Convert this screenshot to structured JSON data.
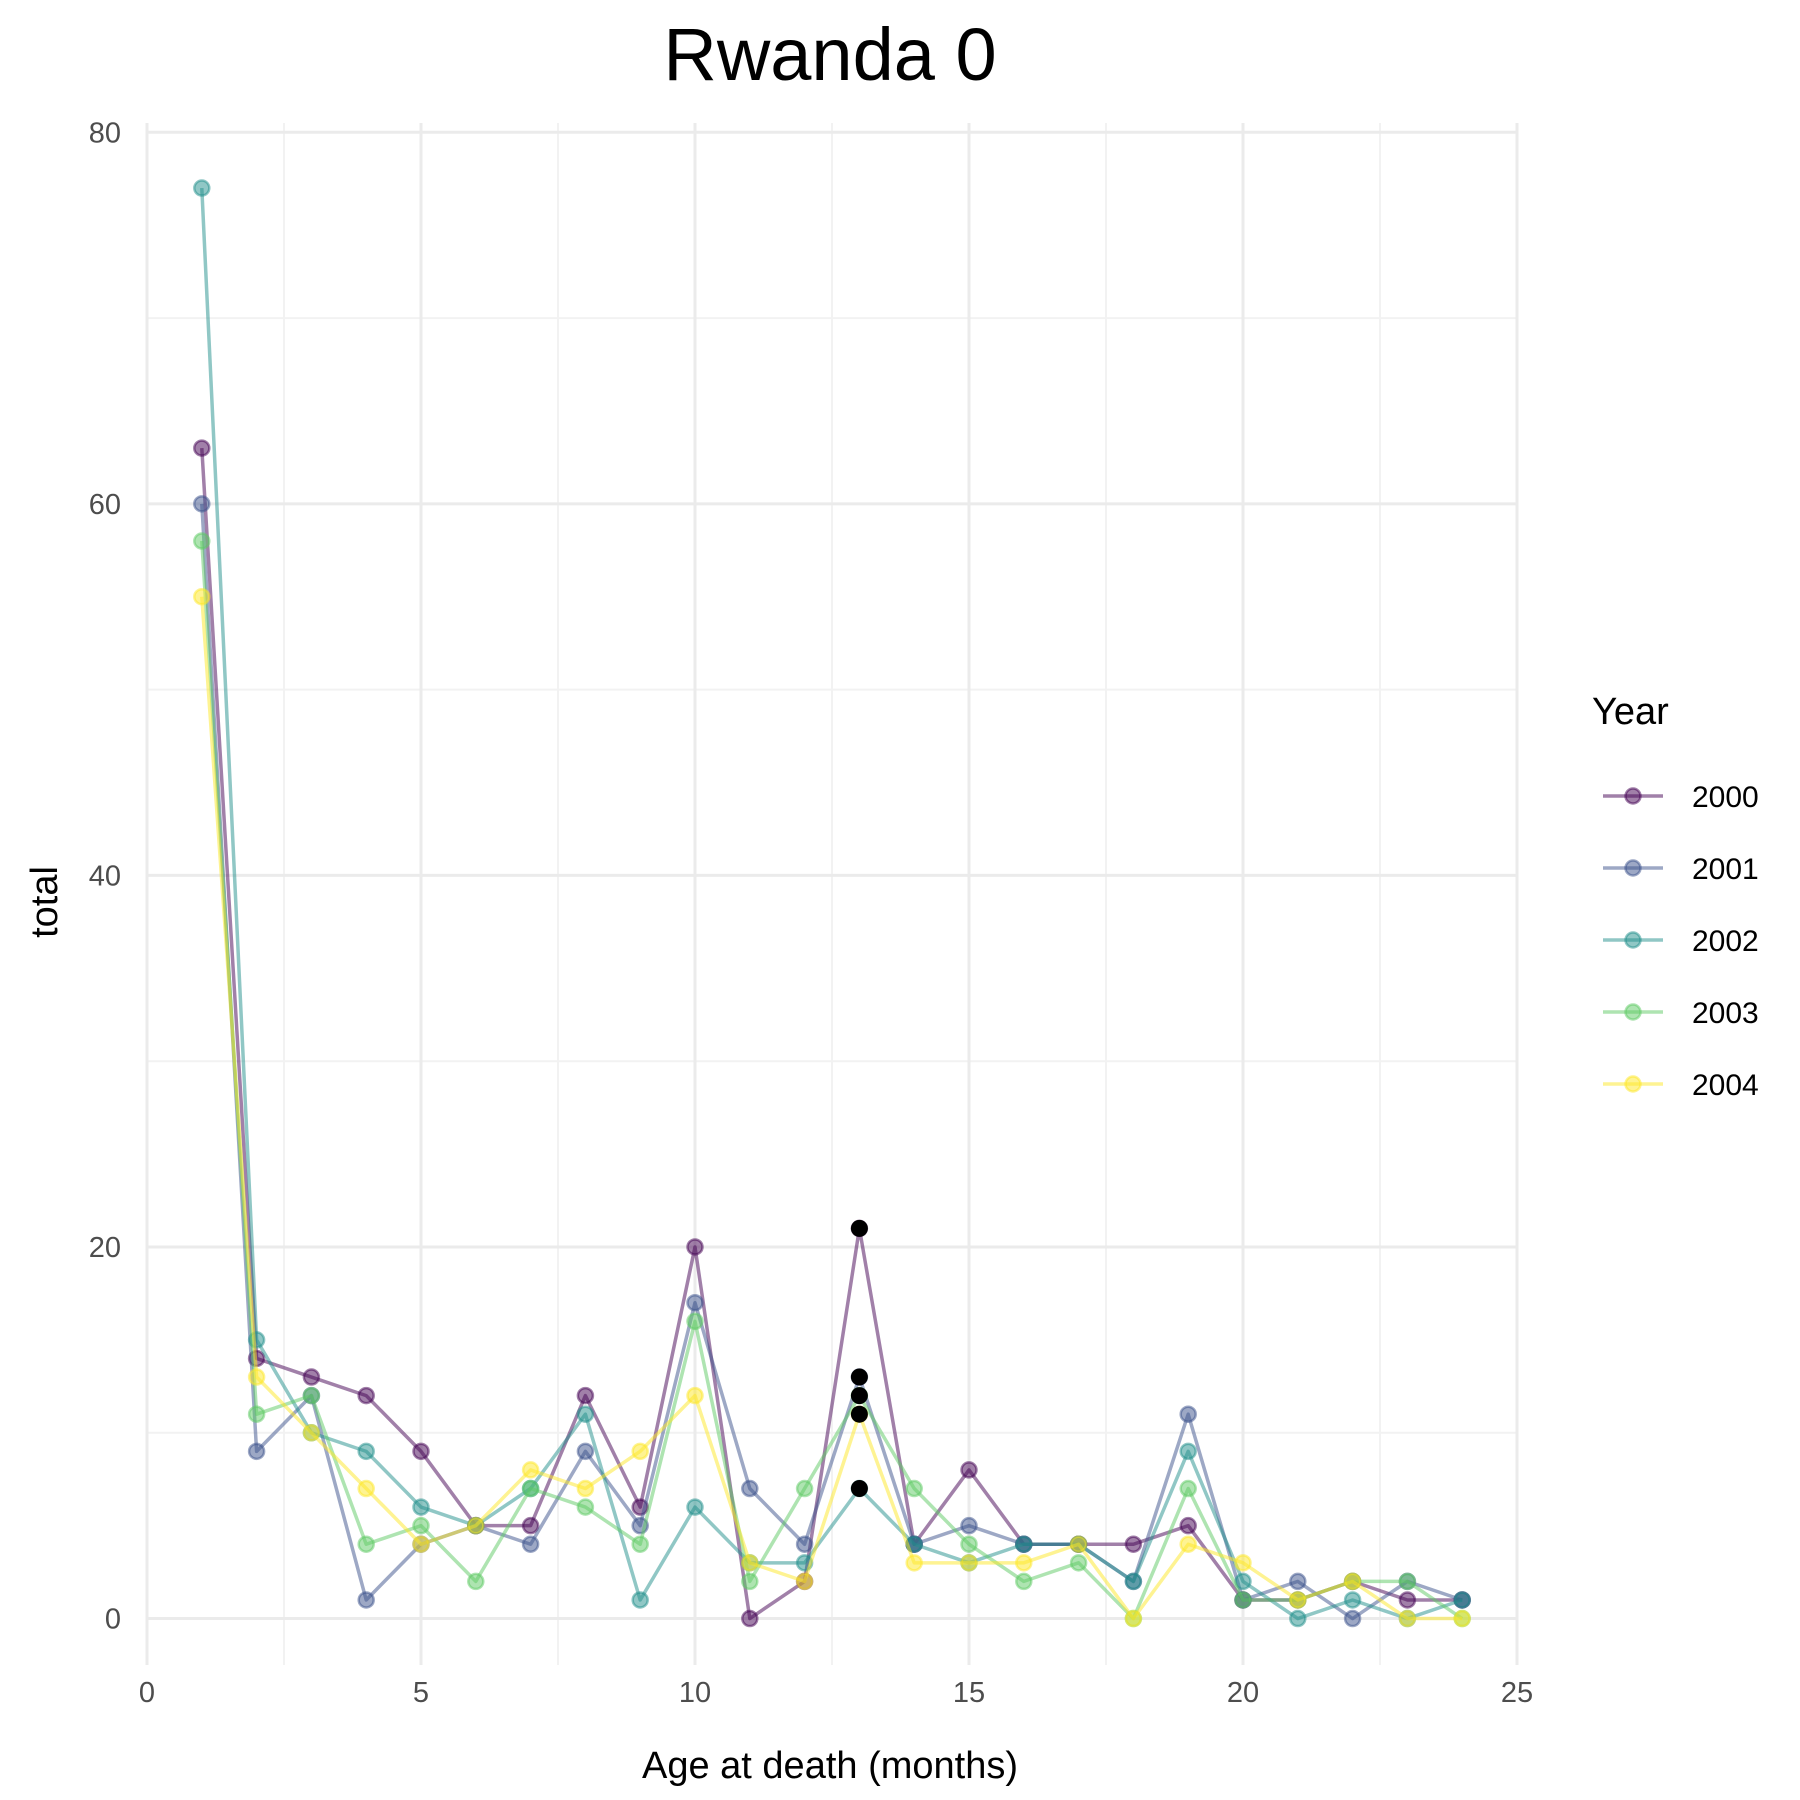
{
  "chart_data": {
    "type": "line",
    "title": "Rwanda 0",
    "xlabel": "Age at death (months)",
    "ylabel": "total",
    "xlim": [
      0,
      25
    ],
    "ylim": [
      -2.5,
      80.5
    ],
    "x_ticks": [
      0,
      5,
      10,
      15,
      20,
      25
    ],
    "y_ticks": [
      0,
      20,
      40,
      60,
      80
    ],
    "grid": true,
    "legend": {
      "title": "Year",
      "position": "right"
    },
    "x": [
      1,
      2,
      3,
      4,
      5,
      6,
      7,
      8,
      9,
      10,
      11,
      12,
      13,
      14,
      15,
      16,
      17,
      18,
      19,
      20,
      21,
      22,
      23,
      24
    ],
    "series": [
      {
        "name": "2000",
        "color": "#440154",
        "values": [
          63,
          14,
          13,
          12,
          9,
          5,
          5,
          12,
          6,
          20,
          0,
          2,
          21,
          4,
          8,
          4,
          4,
          4,
          5,
          1,
          1,
          2,
          1,
          1
        ]
      },
      {
        "name": "2001",
        "color": "#3B528B",
        "values": [
          60,
          9,
          12,
          1,
          4,
          5,
          4,
          9,
          5,
          17,
          7,
          4,
          13,
          4,
          5,
          4,
          4,
          2,
          11,
          1,
          2,
          0,
          2,
          1
        ]
      },
      {
        "name": "2002",
        "color": "#21908C",
        "values": [
          77,
          15,
          10,
          9,
          6,
          5,
          7,
          11,
          1,
          6,
          3,
          3,
          7,
          4,
          3,
          4,
          4,
          2,
          9,
          2,
          0,
          1,
          0,
          1
        ]
      },
      {
        "name": "2003",
        "color": "#5DC963",
        "values": [
          58,
          11,
          12,
          4,
          5,
          2,
          7,
          6,
          4,
          16,
          2,
          7,
          12,
          7,
          4,
          2,
          3,
          0,
          7,
          1,
          1,
          2,
          2,
          0
        ]
      },
      {
        "name": "2004",
        "color": "#FDE725",
        "values": [
          55,
          13,
          10,
          7,
          4,
          5,
          8,
          7,
          9,
          12,
          3,
          2,
          11,
          3,
          3,
          3,
          4,
          0,
          4,
          3,
          1,
          2,
          0,
          0
        ]
      }
    ],
    "highlight_points": {
      "color": "#000000",
      "x": 13,
      "values": [
        21,
        13,
        12,
        11,
        7
      ]
    }
  }
}
